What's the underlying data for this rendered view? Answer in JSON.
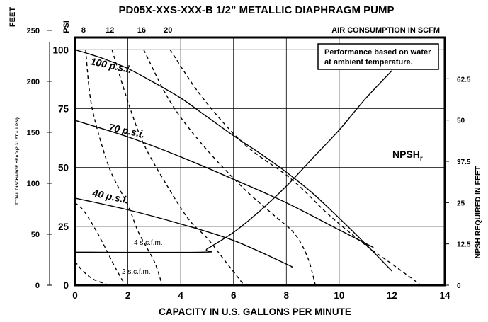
{
  "chart_data": {
    "type": "line",
    "title": "PD05X-XXS-XXX-B  1/2” METALLIC DIAPHRAGM PUMP",
    "xlabel": "CAPACITY IN U.S. GALLONS PER MINUTE",
    "xlim": [
      0,
      14
    ],
    "x_ticks": [
      "0",
      "2",
      "4",
      "6",
      "8",
      "10",
      "12",
      "14"
    ],
    "left_axis": {
      "label": "TOTAL DISCHARGE HEAD (2.31 FT = 1 PSI)",
      "feet_unit": "FEET",
      "psi_unit": "PSI",
      "feet_ticks": [
        "0",
        "50",
        "100",
        "150",
        "200",
        "250"
      ],
      "psi_ticks": [
        "0",
        "25",
        "50",
        "75",
        "100"
      ],
      "ylim_feet": [
        0,
        243
      ]
    },
    "right_axis": {
      "label": "NPSH REQUIRED IN FEET",
      "ticks": [
        "0",
        "12.5",
        "25",
        "37.5",
        "50",
        "62.5"
      ],
      "ylim": [
        0,
        75
      ]
    },
    "top_axis": {
      "label": "AIR CONSUMPTION IN SCFM",
      "ticks": [
        "8",
        "12",
        "16",
        "20"
      ]
    },
    "note_lines": [
      "Performance based on water",
      "at ambient temperature."
    ],
    "pressure_curves": [
      {
        "name": "100 p.s.i.",
        "points": [
          [
            0,
            100
          ],
          [
            1,
            96.5
          ],
          [
            2,
            92
          ],
          [
            3,
            86
          ],
          [
            4,
            79.5
          ],
          [
            5,
            71.5
          ],
          [
            6,
            63.5
          ],
          [
            7,
            56
          ],
          [
            8,
            48
          ],
          [
            9,
            39
          ],
          [
            10,
            28.5
          ],
          [
            11,
            17.5
          ],
          [
            12,
            6
          ]
        ]
      },
      {
        "name": "70 p.s.i.",
        "points": [
          [
            0,
            70
          ],
          [
            2,
            63
          ],
          [
            4,
            54.5
          ],
          [
            6,
            45
          ],
          [
            8,
            35
          ],
          [
            10,
            23.5
          ],
          [
            11.3,
            16
          ]
        ]
      },
      {
        "name": "40 p.s.i.",
        "points": [
          [
            0,
            37
          ],
          [
            2,
            32
          ],
          [
            4,
            26
          ],
          [
            6,
            19
          ],
          [
            8,
            9
          ],
          [
            8.2,
            7.7
          ]
        ]
      }
    ],
    "air_curves": [
      {
        "name": "4 s.c.f.m.",
        "points": [
          [
            0,
            35
          ],
          [
            0.3,
            32
          ],
          [
            0.6,
            27
          ],
          [
            1,
            19
          ],
          [
            1.5,
            8
          ],
          [
            1.9,
            0
          ]
        ]
      },
      {
        "name": "2 s.c.f.m.",
        "points": [
          [
            0,
            10
          ],
          [
            0.3,
            6
          ],
          [
            0.7,
            2.5
          ],
          [
            1.3,
            0
          ]
        ]
      },
      {
        "name": "8",
        "points": [
          [
            0.4,
            100
          ],
          [
            0.6,
            78
          ],
          [
            1,
            60
          ],
          [
            1.4,
            47
          ],
          [
            2,
            34
          ],
          [
            2.4,
            22.5
          ],
          [
            3,
            10
          ],
          [
            3.3,
            0
          ]
        ]
      },
      {
        "name": "12",
        "points": [
          [
            1.4,
            100
          ],
          [
            2,
            78
          ],
          [
            2.6,
            60
          ],
          [
            3.5,
            42
          ],
          [
            4.3,
            28
          ],
          [
            5,
            20
          ],
          [
            5.7,
            10
          ],
          [
            6.4,
            0
          ]
        ]
      },
      {
        "name": "16",
        "points": [
          [
            2.6,
            100
          ],
          [
            3.6,
            78
          ],
          [
            4.8,
            60
          ],
          [
            6.3,
            42
          ],
          [
            7.5,
            30
          ],
          [
            8.3,
            22
          ],
          [
            8.8,
            12
          ],
          [
            9.1,
            0
          ]
        ]
      },
      {
        "name": "20",
        "points": [
          [
            3.6,
            100
          ],
          [
            4.8,
            80
          ],
          [
            6.4,
            60
          ],
          [
            8.2,
            45
          ],
          [
            9.6,
            30
          ],
          [
            11,
            17
          ],
          [
            12,
            9
          ],
          [
            13.1,
            0
          ]
        ]
      }
    ],
    "npsh_curve": {
      "name": "NPSH",
      "subscript": "r",
      "points": [
        [
          0,
          10
        ],
        [
          4.8,
          10
        ],
        [
          5,
          11
        ],
        [
          6,
          16
        ],
        [
          7,
          22.5
        ],
        [
          8,
          30
        ],
        [
          9,
          38.5
        ],
        [
          10,
          47
        ],
        [
          11,
          56.5
        ],
        [
          12,
          65
        ]
      ]
    },
    "grid": true
  }
}
